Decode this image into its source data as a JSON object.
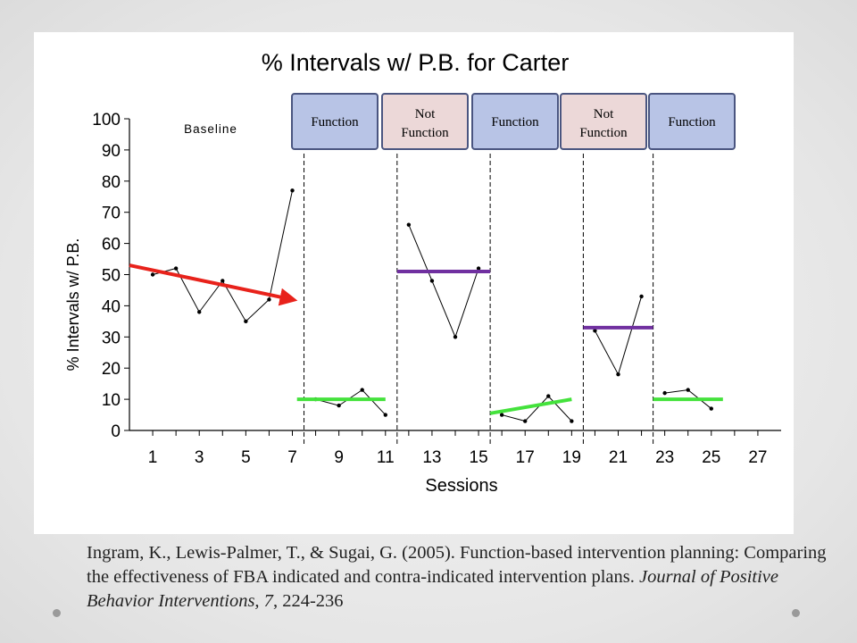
{
  "chart_data": {
    "type": "line",
    "title": "% Intervals w/ P.B. for Carter",
    "xlabel": "Sessions",
    "ylabel": "% Intervals w/ P.B.",
    "xlim": [
      0,
      28
    ],
    "ylim": [
      0,
      100
    ],
    "yticks": [
      0,
      10,
      20,
      30,
      40,
      50,
      60,
      70,
      80,
      90,
      100
    ],
    "xticks": [
      1,
      3,
      5,
      7,
      9,
      11,
      13,
      15,
      17,
      19,
      21,
      23,
      25,
      27
    ],
    "grid": false,
    "phase_lines_x": [
      7.5,
      11.5,
      15.5,
      19.5,
      22.5
    ],
    "phase_labels": [
      "Baseline",
      "Function",
      "Not Function",
      "Function",
      "Not Function",
      "Function"
    ],
    "series": [
      {
        "points": [
          [
            1,
            50
          ],
          [
            2,
            52
          ],
          [
            3,
            38
          ],
          [
            4,
            48
          ],
          [
            5,
            35
          ],
          [
            6,
            42
          ],
          [
            7,
            77
          ]
        ]
      },
      {
        "points": [
          [
            8,
            10
          ],
          [
            9,
            8
          ],
          [
            10,
            13
          ],
          [
            11,
            5
          ]
        ]
      },
      {
        "points": [
          [
            12,
            66
          ],
          [
            13,
            48
          ],
          [
            14,
            30
          ],
          [
            15,
            52
          ]
        ]
      },
      {
        "points": [
          [
            16,
            5
          ],
          [
            17,
            3
          ],
          [
            18,
            11
          ],
          [
            19,
            3
          ]
        ]
      },
      {
        "points": [
          [
            20,
            32
          ],
          [
            21,
            18
          ],
          [
            22,
            43
          ]
        ]
      },
      {
        "points": [
          [
            23,
            12
          ],
          [
            24,
            13
          ],
          [
            25,
            7
          ]
        ]
      }
    ],
    "trend_lines": [
      {
        "color": "#e8221b",
        "from": [
          0,
          53
        ],
        "to": [
          7,
          42
        ],
        "arrow": true
      },
      {
        "color": "#44e23c",
        "from": [
          7.2,
          10
        ],
        "to": [
          11,
          10
        ]
      },
      {
        "color": "#7030a0",
        "from": [
          11.5,
          51
        ],
        "to": [
          15.5,
          51
        ]
      },
      {
        "color": "#44e23c",
        "from": [
          15.5,
          5.5
        ],
        "to": [
          19,
          10
        ]
      },
      {
        "color": "#7030a0",
        "from": [
          19.5,
          33
        ],
        "to": [
          22.5,
          33
        ]
      },
      {
        "color": "#44e23c",
        "from": [
          22.5,
          10
        ],
        "to": [
          25.5,
          10
        ]
      }
    ],
    "colors": {
      "function_box": "#b8c4e6",
      "not_function_box": "#ecd8d8",
      "box_border": "#4a5580",
      "data_line": "#000000"
    }
  },
  "citation": {
    "main": "Ingram, K., Lewis-Palmer, T., & Sugai, G.  (2005). Function-based intervention planning: Comparing the effectiveness of FBA indicated and contra-indicated intervention plans.",
    "journal": "Journal of Positive Behavior Interventions, 7",
    "pages": ", 224-236"
  }
}
